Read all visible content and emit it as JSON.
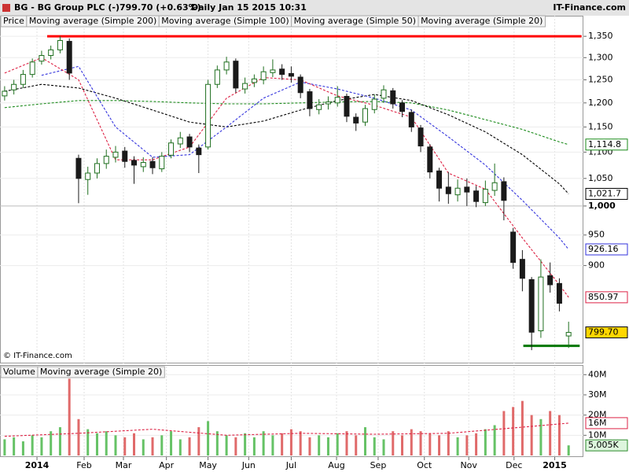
{
  "header": {
    "symbol": "BG - BG Group PLC (-)",
    "quote": "799.70 (+0.63%)",
    "period": "Daily  Jan 15 2015 10:31",
    "brand": "IT-Finance.com"
  },
  "chart_data": [
    {
      "type": "candlestick",
      "name": "Price",
      "up_color": "#1f6f1f",
      "down_color": "#1a1a1a",
      "open": [
        1215,
        1228,
        1240,
        1262,
        1292,
        1305,
        1318,
        1338,
        1088,
        1048,
        1060,
        1078,
        1090,
        1102,
        1084,
        1072,
        1082,
        1068,
        1094,
        1116,
        1130,
        1108,
        1110,
        1240,
        1272,
        1292,
        1230,
        1244,
        1250,
        1266,
        1274,
        1264,
        1256,
        1224,
        1186,
        1198,
        1200,
        1214,
        1170,
        1160,
        1186,
        1210,
        1226,
        1200,
        1180,
        1148,
        1110,
        1064,
        1034,
        1020,
        1034,
        1027,
        1006,
        1028,
        1044,
        955,
        910,
        878,
        802,
        884,
        872,
        794.7
      ],
      "high": [
        1236,
        1250,
        1272,
        1298,
        1316,
        1328,
        1350,
        1345,
        1095,
        1072,
        1088,
        1105,
        1112,
        1110,
        1092,
        1090,
        1090,
        1100,
        1125,
        1140,
        1136,
        1115,
        1250,
        1282,
        1302,
        1298,
        1255,
        1262,
        1280,
        1296,
        1285,
        1280,
        1262,
        1230,
        1208,
        1214,
        1236,
        1220,
        1178,
        1196,
        1218,
        1238,
        1232,
        1206,
        1186,
        1154,
        1116,
        1070,
        1062,
        1048,
        1050,
        1036,
        1046,
        1078,
        1052,
        962,
        925,
        882,
        910,
        905,
        880,
        815
      ],
      "low": [
        1205,
        1218,
        1232,
        1255,
        1284,
        1296,
        1310,
        1250,
        1005,
        1020,
        1050,
        1068,
        1080,
        1070,
        1040,
        1062,
        1058,
        1062,
        1088,
        1108,
        1100,
        1060,
        1105,
        1232,
        1262,
        1222,
        1220,
        1234,
        1240,
        1256,
        1250,
        1244,
        1210,
        1172,
        1176,
        1186,
        1192,
        1160,
        1142,
        1152,
        1178,
        1200,
        1188,
        1170,
        1140,
        1100,
        1050,
        1008,
        1004,
        1008,
        1000,
        998,
        1000,
        1018,
        975,
        895,
        860,
        775,
        792,
        858,
        830,
        778
      ],
      "close": [
        1225,
        1240,
        1262,
        1290,
        1305,
        1318,
        1340,
        1265,
        1050,
        1060,
        1078,
        1092,
        1100,
        1082,
        1075,
        1080,
        1070,
        1092,
        1118,
        1128,
        1110,
        1095,
        1240,
        1272,
        1290,
        1232,
        1242,
        1252,
        1268,
        1272,
        1262,
        1258,
        1222,
        1188,
        1196,
        1202,
        1212,
        1172,
        1158,
        1188,
        1208,
        1228,
        1198,
        1182,
        1150,
        1112,
        1062,
        1032,
        1022,
        1032,
        1025,
        1008,
        1030,
        1042,
        1010,
        905,
        880,
        800,
        882,
        870,
        842,
        799.7
      ],
      "last_label": "799.70",
      "series": [
        {
          "name": "Moving average (Simple 200)",
          "color": "#1a8a1a",
          "x": [
            0,
            4,
            8,
            12,
            16,
            20,
            24,
            28,
            32,
            36,
            40,
            44,
            48,
            52,
            56,
            60,
            61
          ],
          "values": [
            1190,
            1198,
            1205,
            1205,
            1203,
            1200,
            1198,
            1198,
            1200,
            1202,
            1203,
            1200,
            1185,
            1165,
            1145,
            1120,
            1114.8
          ],
          "last_label": "1,114.8"
        },
        {
          "name": "Moving average (Simple 100)",
          "color": "#000000",
          "x": [
            0,
            4,
            8,
            12,
            16,
            20,
            24,
            28,
            32,
            36,
            40,
            44,
            48,
            52,
            56,
            60,
            61
          ],
          "values": [
            1225,
            1240,
            1232,
            1210,
            1185,
            1160,
            1150,
            1162,
            1185,
            1205,
            1218,
            1205,
            1175,
            1140,
            1095,
            1040,
            1021.7
          ],
          "last_label": "1,021.7"
        },
        {
          "name": "Moving average (Simple 50)",
          "color": "#3333dd",
          "x": [
            0,
            4,
            8,
            12,
            16,
            20,
            24,
            28,
            32,
            36,
            40,
            44,
            48,
            52,
            56,
            60,
            61
          ],
          "values": [
            null,
            1260,
            1280,
            1150,
            1090,
            1095,
            1150,
            1210,
            1245,
            1230,
            1210,
            1185,
            1130,
            1075,
            1010,
            945,
            926.16
          ],
          "last_label": "926.16"
        },
        {
          "name": "Moving average (Simple 20)",
          "color": "#dd2244",
          "x": [
            0,
            4,
            8,
            12,
            16,
            20,
            24,
            28,
            32,
            36,
            40,
            44,
            48,
            52,
            56,
            60,
            61
          ],
          "values": [
            1265,
            1300,
            1250,
            1085,
            1085,
            1110,
            1210,
            1255,
            1250,
            1215,
            1195,
            1170,
            1060,
            1030,
            945,
            870,
            850.97
          ],
          "last_label": "850.97"
        }
      ],
      "lines": [
        {
          "value": 1350,
          "color": "#ff0000",
          "x": [
            4.6,
            62.4
          ]
        },
        {
          "value": 781,
          "color": "#007700",
          "x": [
            56.1,
            62.2
          ]
        }
      ],
      "log": true,
      "ylim": [
        757,
        1400
      ],
      "yticks": [
        {
          "value": 1350,
          "label": "1,350"
        },
        {
          "value": 1300,
          "label": "1,300"
        },
        {
          "value": 1250,
          "label": "1,250"
        },
        {
          "value": 1200,
          "label": "1,200"
        },
        {
          "value": 1150,
          "label": "1,150"
        },
        {
          "value": 1100,
          "label": "1,100"
        },
        {
          "value": 1050,
          "label": "1,050"
        },
        {
          "value": 1000,
          "label": "1,000",
          "bold": true
        },
        950,
        900
      ],
      "xlim": [
        -0.5,
        62.6
      ],
      "xticks": [
        {
          "value": 3.5,
          "label": "2014",
          "bold": true
        },
        {
          "value": 8.6,
          "label": "Feb"
        },
        {
          "value": 12.85,
          "label": "Mar"
        },
        {
          "value": 17.5,
          "label": "Apr"
        },
        {
          "value": 22,
          "label": "May"
        },
        {
          "value": 26.4,
          "label": "Jun"
        },
        {
          "value": 31,
          "label": "Jul"
        },
        {
          "value": 35.9,
          "label": "Aug"
        },
        {
          "value": 40.4,
          "label": "Sep"
        },
        {
          "value": 45.4,
          "label": "Oct"
        },
        {
          "value": 50.2,
          "label": "Nov"
        },
        {
          "value": 55.1,
          "label": "Dec"
        },
        {
          "value": 59.5,
          "label": "2015",
          "bold": true
        }
      ],
      "annotation": "© IT-Finance.com"
    },
    {
      "type": "bar",
      "name": "Volume",
      "up_color": "#66c266",
      "down_color": "#e06a6a",
      "values": [
        8000000,
        9000000,
        7000000,
        10000000,
        9000000,
        12000000,
        14000000,
        38000000,
        18000000,
        13000000,
        11000000,
        12000000,
        10000000,
        9000000,
        11000000,
        8000000,
        9000000,
        10000000,
        12000000,
        8000000,
        9000000,
        14000000,
        17000000,
        12000000,
        10000000,
        9000000,
        11000000,
        9000000,
        12000000,
        10000000,
        11000000,
        13000000,
        12000000,
        9000000,
        10000000,
        9000000,
        11000000,
        12000000,
        10000000,
        14000000,
        9000000,
        8000000,
        12000000,
        10000000,
        13000000,
        12000000,
        11000000,
        10000000,
        12000000,
        9000000,
        10000000,
        11000000,
        13000000,
        15000000,
        22000000,
        24000000,
        27000000,
        20000000,
        18000000,
        22000000,
        20000000,
        5005000
      ],
      "last_label": "5,005K",
      "series": [
        {
          "name": "Moving average (Simple 20)",
          "color": "#dd2244",
          "x": [
            0,
            8,
            16,
            24,
            32,
            40,
            48,
            56,
            61
          ],
          "values": [
            9500000,
            11000000,
            13000000,
            10000000,
            11000000,
            10500000,
            11000000,
            14000000,
            16000000
          ],
          "last_label": "16M"
        }
      ],
      "ylim": [
        0,
        44000000
      ],
      "yticks": [
        {
          "value": 40000000,
          "label": "40M"
        },
        {
          "value": 30000000,
          "label": "30M"
        },
        {
          "value": 20000000,
          "label": "20M"
        },
        {
          "value": 10000000,
          "label": "10M"
        }
      ]
    }
  ]
}
